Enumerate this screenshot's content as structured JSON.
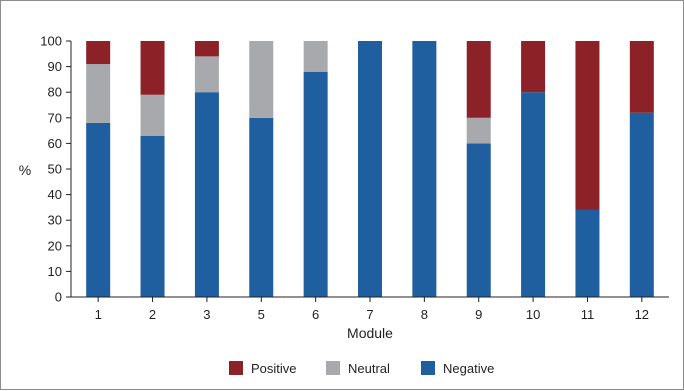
{
  "chart_data": {
    "type": "bar",
    "stacked": true,
    "categories": [
      "1",
      "2",
      "3",
      "5",
      "6",
      "7",
      "8",
      "9",
      "10",
      "11",
      "12"
    ],
    "series": [
      {
        "name": "Negative",
        "color": "#1f5fa0",
        "values": [
          68,
          63,
          80,
          70,
          88,
          100,
          100,
          60,
          80,
          34,
          72
        ]
      },
      {
        "name": "Neutral",
        "color": "#a7a9ac",
        "values": [
          23,
          16,
          14,
          30,
          12,
          0,
          0,
          10,
          0,
          0,
          0
        ]
      },
      {
        "name": "Positive",
        "color": "#8c2227",
        "values": [
          9,
          21,
          6,
          0,
          0,
          0,
          0,
          30,
          20,
          66,
          28
        ]
      }
    ],
    "legend_order": [
      "Positive",
      "Neutral",
      "Negative"
    ],
    "title": "",
    "xlabel": "Module",
    "ylabel": "%",
    "ylim": [
      0,
      100
    ],
    "yticks": [
      0,
      10,
      20,
      30,
      40,
      50,
      60,
      70,
      80,
      90,
      100
    ],
    "grid": false,
    "legend_position": "bottom"
  }
}
